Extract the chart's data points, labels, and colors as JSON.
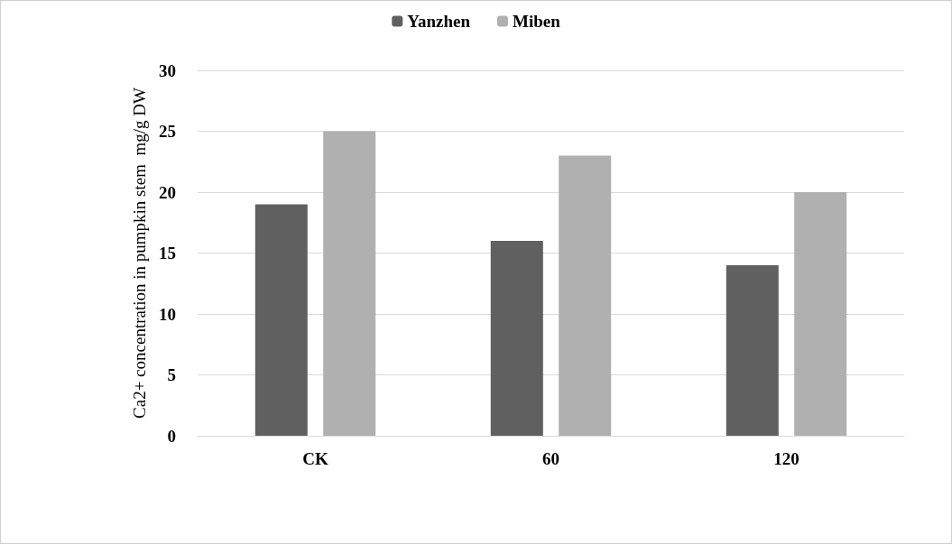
{
  "chart_data": {
    "type": "bar",
    "ylabel": "Ca2+ concentration in pumpkin stem  mg/g DW",
    "categories": [
      "CK",
      "60",
      "120"
    ],
    "series": [
      {
        "name": "Yanzhen",
        "color": "#606060",
        "values": [
          19,
          16,
          14
        ]
      },
      {
        "name": "Miben",
        "color": "#b0b0b0",
        "values": [
          25,
          23,
          20
        ]
      }
    ],
    "ylim": [
      0,
      30
    ],
    "yticks": [
      0,
      5,
      10,
      15,
      20,
      25,
      30
    ],
    "grid": "y",
    "legend": "top"
  }
}
